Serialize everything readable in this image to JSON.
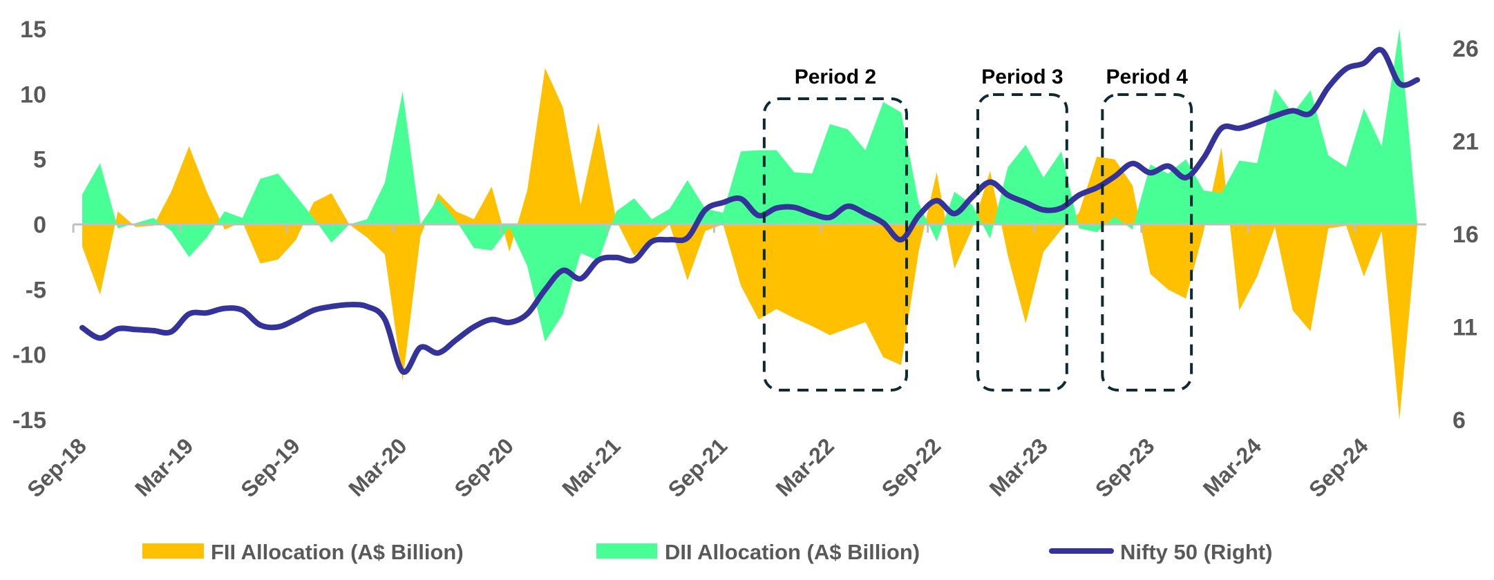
{
  "chart_data": {
    "type": "area+line",
    "x": [
      "Sep-18",
      "Oct-18",
      "Nov-18",
      "Dec-18",
      "Jan-19",
      "Feb-19",
      "Mar-19",
      "Apr-19",
      "May-19",
      "Jun-19",
      "Jul-19",
      "Aug-19",
      "Sep-19",
      "Oct-19",
      "Nov-19",
      "Dec-19",
      "Jan-20",
      "Feb-20",
      "Mar-20",
      "Apr-20",
      "May-20",
      "Jun-20",
      "Jul-20",
      "Aug-20",
      "Sep-20",
      "Oct-20",
      "Nov-20",
      "Dec-20",
      "Jan-21",
      "Feb-21",
      "Mar-21",
      "Apr-21",
      "May-21",
      "Jun-21",
      "Jul-21",
      "Aug-21",
      "Sep-21",
      "Oct-21",
      "Nov-21",
      "Dec-21",
      "Jan-22",
      "Feb-22",
      "Mar-22",
      "Apr-22",
      "May-22",
      "Jun-22",
      "Jul-22",
      "Aug-22",
      "Sep-22",
      "Oct-22",
      "Nov-22",
      "Dec-22",
      "Jan-23",
      "Feb-23",
      "Mar-23",
      "Apr-23",
      "May-23",
      "Jun-23",
      "Jul-23",
      "Aug-23",
      "Sep-23",
      "Oct-23",
      "Nov-23",
      "Dec-23",
      "Jan-24",
      "Feb-24",
      "Mar-24",
      "Apr-24",
      "May-24",
      "Jun-24",
      "Jul-24",
      "Aug-24",
      "Sep-24",
      "Oct-24",
      "Nov-24",
      "Dec-24"
    ],
    "x_tick_labels": [
      "Sep-18",
      "Mar-19",
      "Sep-19",
      "Mar-20",
      "Sep-20",
      "Mar-21",
      "Sep-21",
      "Mar-22",
      "Sep-22",
      "Mar-23",
      "Sep-23",
      "Mar-24",
      "Sep-24"
    ],
    "y_left": {
      "range": [
        -15,
        15
      ],
      "ticks": [
        "15",
        "10",
        "5",
        "0",
        "-5",
        "-10",
        "-15"
      ]
    },
    "y_right": {
      "range": [
        6,
        26
      ],
      "ticks": [
        "26",
        "21",
        "16",
        "11",
        "6"
      ]
    },
    "series": [
      {
        "name": "FII Allocation (A$ Billion)",
        "type": "area",
        "axis": "left",
        "color": "#FFC000",
        "values": [
          -1.7,
          -5.4,
          1.0,
          -0.2,
          -0.1,
          2.5,
          6.0,
          2.5,
          -0.4,
          0.2,
          -3.0,
          -2.7,
          -1.2,
          1.7,
          2.4,
          0,
          -1.0,
          -2.3,
          -12.0,
          -0.9,
          2.4,
          1.0,
          0.4,
          2.9,
          -2.1,
          2.6,
          12.0,
          9.0,
          1.5,
          7.8,
          0.3,
          -2.4,
          -1.2,
          0,
          -4.3,
          -0.5,
          0,
          -4.7,
          -7.3,
          -6.5,
          -7.2,
          -7.8,
          -8.5,
          -8.0,
          -7.5,
          -10.2,
          -10.8,
          -2.0,
          4.0,
          -3.4,
          -0.3,
          4.1,
          -2.4,
          -7.6,
          -2.1,
          -0.4,
          0.9,
          5.2,
          5.0,
          3.0,
          -3.8,
          -5.0,
          -5.7,
          -0.5,
          5.9,
          -6.6,
          -4.0,
          -0.2,
          -6.6,
          -8.2,
          -0.3,
          -0.1,
          -4.0,
          -0.5,
          -15.2,
          0
        ]
      },
      {
        "name": "DII Allocation (A$ Billion)",
        "type": "area",
        "axis": "left",
        "color": "#47FF95",
        "values": [
          2.3,
          4.7,
          -0.3,
          0.1,
          0.5,
          -0.5,
          -2.5,
          -1.0,
          1.0,
          0.5,
          3.5,
          3.9,
          2.2,
          0.5,
          -1.4,
          0,
          0.4,
          3.2,
          10.2,
          0,
          2.0,
          0.3,
          -1.8,
          -2.0,
          -0.2,
          -3.2,
          -9.0,
          -6.9,
          -2.2,
          -2.8,
          1.0,
          2.0,
          0.4,
          1.2,
          3.4,
          1.2,
          0.9,
          5.6,
          5.7,
          5.7,
          4.0,
          3.9,
          7.7,
          7.3,
          5.7,
          9.4,
          8.6,
          1.6,
          -1.3,
          2.5,
          1.5,
          -1.1,
          4.4,
          6.1,
          3.6,
          5.6,
          -0.3,
          -0.6,
          0.6,
          -0.4,
          4.6,
          3.9,
          5.0,
          2.6,
          2.4,
          4.9,
          4.7,
          10.4,
          8.5,
          10.3,
          5.3,
          4.4,
          8.9,
          6.0,
          15.0,
          0
        ]
      },
      {
        "name": "Nifty 50 (Right)",
        "type": "line",
        "axis": "right",
        "color": "#333399",
        "values": [
          10.96,
          10.4,
          10.9,
          10.86,
          10.8,
          10.74,
          11.7,
          11.76,
          12.0,
          11.9,
          11.1,
          11.0,
          11.4,
          11.9,
          12.1,
          12.2,
          12.1,
          11.4,
          8.6,
          9.9,
          9.6,
          10.3,
          11.0,
          11.4,
          11.24,
          11.7,
          13.0,
          14.04,
          13.6,
          14.6,
          14.74,
          14.6,
          15.6,
          15.7,
          15.8,
          17.3,
          17.7,
          17.9,
          17.0,
          17.4,
          17.44,
          17.1,
          16.9,
          17.5,
          17.1,
          16.6,
          15.7,
          17.0,
          17.8,
          17.1,
          18.0,
          18.8,
          18.1,
          17.7,
          17.3,
          17.4,
          18.1,
          18.5,
          19.1,
          19.8,
          19.3,
          19.66,
          19.04,
          20.1,
          21.7,
          21.7,
          22.0,
          22.36,
          22.64,
          22.5,
          23.9,
          24.9,
          25.2,
          25.9,
          24.1,
          24.3
        ]
      }
    ],
    "annotations": [
      {
        "label": "Period 2",
        "from": "Nov-21",
        "to": "Jul-22"
      },
      {
        "label": "Period 3",
        "from": "Nov-22",
        "to": "Apr-23"
      },
      {
        "label": "Period 4",
        "from": "Jun-23",
        "to": "Nov-23"
      }
    ],
    "legend": {
      "placement": "bottom"
    },
    "grid": false,
    "axis_color": "#BFBFBF",
    "annotation_color": "#0E2A35"
  }
}
